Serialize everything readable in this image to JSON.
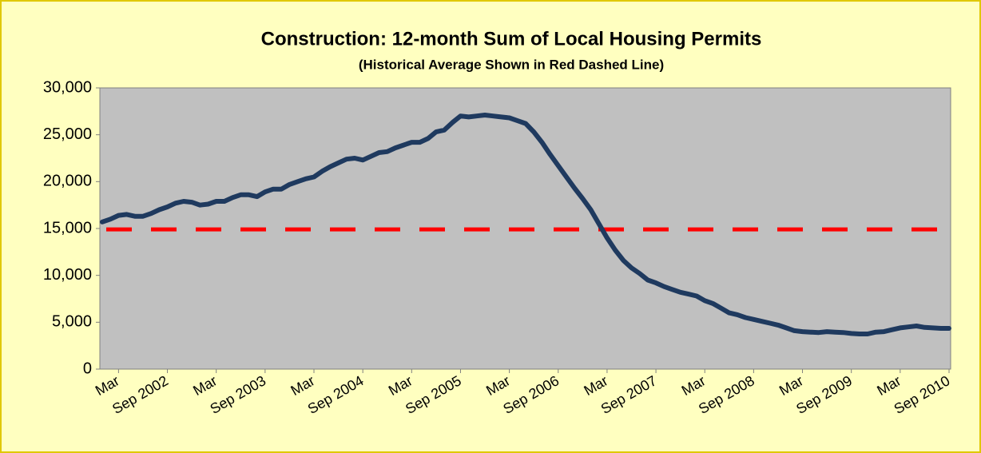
{
  "chart_data": {
    "type": "line",
    "title": "Construction: 12-month Sum of Local Housing Permits",
    "subtitle": "(Historical Average Shown in Red Dashed Line)",
    "categories": [
      null,
      null,
      "Mar",
      null,
      null,
      null,
      null,
      null,
      "Sep 2002",
      null,
      null,
      null,
      null,
      null,
      "Mar",
      null,
      null,
      null,
      null,
      null,
      "Sep 2003",
      null,
      null,
      null,
      null,
      null,
      "Mar",
      null,
      null,
      null,
      null,
      null,
      "Sep 2004",
      null,
      null,
      null,
      null,
      null,
      "Mar",
      null,
      null,
      null,
      null,
      null,
      "Sep 2005",
      null,
      null,
      null,
      null,
      null,
      "Mar",
      null,
      null,
      null,
      null,
      null,
      "Sep 2006",
      null,
      null,
      null,
      null,
      null,
      "Mar",
      null,
      null,
      null,
      null,
      null,
      "Sep 2007",
      null,
      null,
      null,
      null,
      null,
      "Mar",
      null,
      null,
      null,
      null,
      null,
      "Sep 2008",
      null,
      null,
      null,
      null,
      null,
      "Mar",
      null,
      null,
      null,
      null,
      null,
      "Sep 2009",
      null,
      null,
      null,
      null,
      null,
      "Mar",
      null,
      null,
      null,
      null,
      null,
      "Sep 2010"
    ],
    "series": [
      {
        "color": "#1f3a5f",
        "values": [
          15700,
          16000,
          16400,
          16500,
          16300,
          16300,
          16600,
          17000,
          17300,
          17700,
          17900,
          17800,
          17500,
          17600,
          17900,
          17900,
          18300,
          18600,
          18600,
          18400,
          18900,
          19200,
          19200,
          19700,
          20000,
          20300,
          20500,
          21100,
          21600,
          22000,
          22400,
          22500,
          22300,
          22700,
          23100,
          23200,
          23600,
          23900,
          24200,
          24200,
          24600,
          25300,
          25500,
          26300,
          27000,
          26900,
          27000,
          27100,
          27000,
          26900,
          26800,
          26500,
          26200,
          25300,
          24200,
          22900,
          21700,
          20500,
          19300,
          18200,
          17000,
          15500,
          14000,
          12700,
          11600,
          10800,
          10200,
          9500,
          9200,
          8800,
          8500,
          8200,
          8000,
          7800,
          7300,
          7000,
          6500,
          6000,
          5800,
          5500,
          5300,
          5100,
          4900,
          4700,
          4400,
          4100,
          4000,
          3950,
          3900,
          4000,
          3950,
          3900,
          3800,
          3750,
          3750,
          3950,
          4000,
          4200,
          4400,
          4500,
          4600,
          4450,
          4400,
          4350,
          4350
        ]
      }
    ],
    "reference_line": {
      "value": 14900,
      "color": "#ff0000",
      "dashed": true
    },
    "ylim": [
      0,
      30000
    ],
    "yticks": [
      0,
      {
        "value": 5000,
        "label": "5,000"
      },
      {
        "value": 10000,
        "label": "10,000"
      },
      {
        "value": 15000,
        "label": "15,000"
      },
      {
        "value": 20000,
        "label": "20,000"
      },
      {
        "value": 25000,
        "label": "25,000"
      },
      {
        "value": 30000,
        "label": "30,000"
      }
    ],
    "grid": false
  }
}
